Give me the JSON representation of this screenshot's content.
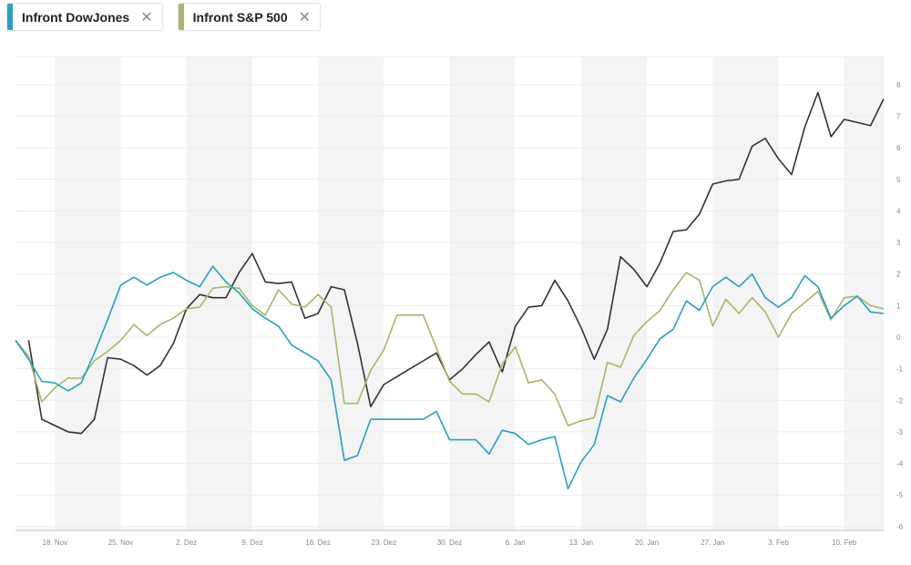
{
  "legend": [
    {
      "label": "Infront DowJones",
      "color": "#2a9fbf",
      "close_icon": "close-icon"
    },
    {
      "label": "Infront S&P 500",
      "color": "#a3b86c",
      "close_icon": "close-icon"
    }
  ],
  "chart_data": {
    "type": "line",
    "title": "",
    "xlabel": "",
    "ylabel": "",
    "ylim": [
      -6,
      8
    ],
    "yticks": [
      "8",
      "7",
      "6",
      "5",
      "4",
      "3",
      "2",
      "1",
      "0",
      "-1",
      "-2",
      "-3",
      "-4",
      "-5",
      "-6"
    ],
    "grid": true,
    "shaded_weeks": [
      "2024-11-18",
      "2024-12-02",
      "2024-12-16",
      "2024-12-30",
      "2025-01-13",
      "2025-01-27",
      "2025-02-10"
    ],
    "xticks": [
      {
        "date": "2024-11-18",
        "label": "18. Nov"
      },
      {
        "date": "2024-11-25",
        "label": "25. Nov"
      },
      {
        "date": "2024-12-02",
        "label": "2. Dez"
      },
      {
        "date": "2024-12-09",
        "label": "9. Dez"
      },
      {
        "date": "2024-12-16",
        "label": "16. Dez"
      },
      {
        "date": "2024-12-23",
        "label": "23. Dez"
      },
      {
        "date": "2024-12-30",
        "label": "30. Dez"
      },
      {
        "date": "2025-01-06",
        "label": "6. Jan"
      },
      {
        "date": "2025-01-13",
        "label": "13. Jan"
      },
      {
        "date": "2025-01-20",
        "label": "20. Jan"
      },
      {
        "date": "2025-01-27",
        "label": "27. Jan"
      },
      {
        "date": "2025-02-03",
        "label": "3. Feb"
      },
      {
        "date": "2025-02-10",
        "label": "10. Feb"
      }
    ],
    "x": [
      "2024-11-13",
      "2024-11-14",
      "2024-11-15",
      "2024-11-18",
      "2024-11-19",
      "2024-11-20",
      "2024-11-21",
      "2024-11-22",
      "2024-11-25",
      "2024-11-26",
      "2024-11-27",
      "2024-11-28",
      "2024-11-29",
      "2024-12-02",
      "2024-12-03",
      "2024-12-04",
      "2024-12-05",
      "2024-12-06",
      "2024-12-09",
      "2024-12-10",
      "2024-12-11",
      "2024-12-12",
      "2024-12-13",
      "2024-12-16",
      "2024-12-17",
      "2024-12-18",
      "2024-12-19",
      "2024-12-20",
      "2024-12-23",
      "2024-12-24",
      "2024-12-25",
      "2024-12-26",
      "2024-12-27",
      "2024-12-30",
      "2024-12-31",
      "2025-01-01",
      "2025-01-02",
      "2025-01-03",
      "2025-01-06",
      "2025-01-07",
      "2025-01-08",
      "2025-01-09",
      "2025-01-10",
      "2025-01-13",
      "2025-01-14",
      "2025-01-15",
      "2025-01-16",
      "2025-01-17",
      "2025-01-20",
      "2025-01-21",
      "2025-01-22",
      "2025-01-23",
      "2025-01-24",
      "2025-01-27",
      "2025-01-28",
      "2025-01-29",
      "2025-01-30",
      "2025-01-31",
      "2025-02-03",
      "2025-02-04",
      "2025-02-05",
      "2025-02-06",
      "2025-02-07",
      "2025-02-10",
      "2025-02-11",
      "2025-02-12",
      "2025-02-13"
    ],
    "series": [
      {
        "name": "Infront DowJones",
        "color": "#2a9fbf",
        "values": [
          -0.1,
          -0.7,
          -1.4,
          -1.45,
          -1.7,
          -1.45,
          -0.5,
          0.55,
          1.65,
          1.9,
          1.65,
          1.9,
          2.05,
          1.8,
          1.6,
          2.25,
          1.75,
          1.4,
          0.9,
          0.6,
          0.35,
          -0.25,
          -0.5,
          -0.75,
          -1.35,
          -3.9,
          -3.75,
          -2.6,
          -2.6,
          -2.6,
          -2.6,
          -2.6,
          -2.35,
          -3.25,
          -3.25,
          -3.25,
          -3.7,
          -2.95,
          -3.05,
          -3.4,
          -3.25,
          -3.15,
          -4.8,
          -3.95,
          -3.4,
          -1.85,
          -2.05,
          -1.3,
          -0.7,
          -0.05,
          0.25,
          1.15,
          0.85,
          1.6,
          1.9,
          1.6,
          2.0,
          1.25,
          0.95,
          1.25,
          1.95,
          1.6,
          0.6,
          1.0,
          1.3,
          0.8,
          0.75
        ]
      },
      {
        "name": "Infront S&P 500",
        "color": "#a3b86c",
        "values": [
          -0.1,
          -0.6,
          -2.05,
          -1.6,
          -1.3,
          -1.3,
          -0.75,
          -0.45,
          -0.1,
          0.4,
          0.05,
          0.4,
          0.6,
          0.9,
          0.95,
          1.55,
          1.6,
          1.55,
          1.0,
          0.7,
          1.5,
          1.05,
          0.95,
          1.35,
          0.95,
          -2.1,
          -2.1,
          -1.05,
          -0.4,
          0.7,
          0.7,
          0.7,
          -0.35,
          -1.4,
          -1.8,
          -1.8,
          -2.05,
          -0.85,
          -0.3,
          -1.45,
          -1.35,
          -1.8,
          -2.8,
          -2.65,
          -2.55,
          -0.8,
          -0.95,
          0.05,
          0.5,
          0.85,
          1.5,
          2.05,
          1.8,
          0.35,
          1.2,
          0.75,
          1.25,
          0.8,
          0.0,
          0.75,
          1.1,
          1.45,
          0.55,
          1.25,
          1.3,
          1.0,
          0.9
        ]
      },
      {
        "color": "#333333",
        "values": [
          null,
          -0.1,
          -2.6,
          -2.8,
          -3.0,
          -3.05,
          -2.6,
          -0.65,
          -0.7,
          -0.9,
          -1.2,
          -0.9,
          -0.2,
          0.9,
          1.35,
          1.25,
          1.25,
          2.05,
          2.65,
          1.75,
          1.7,
          1.75,
          0.6,
          0.75,
          1.6,
          1.5,
          -0.2,
          -2.2,
          -1.5,
          -1.25,
          -1.0,
          -0.75,
          -0.5,
          -1.35,
          -1.0,
          -0.55,
          -0.15,
          -1.1,
          0.35,
          0.95,
          1.0,
          1.8,
          1.15,
          0.3,
          -0.7,
          0.25,
          2.55,
          2.15,
          1.6,
          2.35,
          3.35,
          3.4,
          3.9,
          4.85,
          4.95,
          5.0,
          6.05,
          6.3,
          5.65,
          5.15,
          6.65,
          7.75,
          6.35,
          6.9,
          6.8,
          6.7,
          7.55
        ]
      }
    ]
  }
}
